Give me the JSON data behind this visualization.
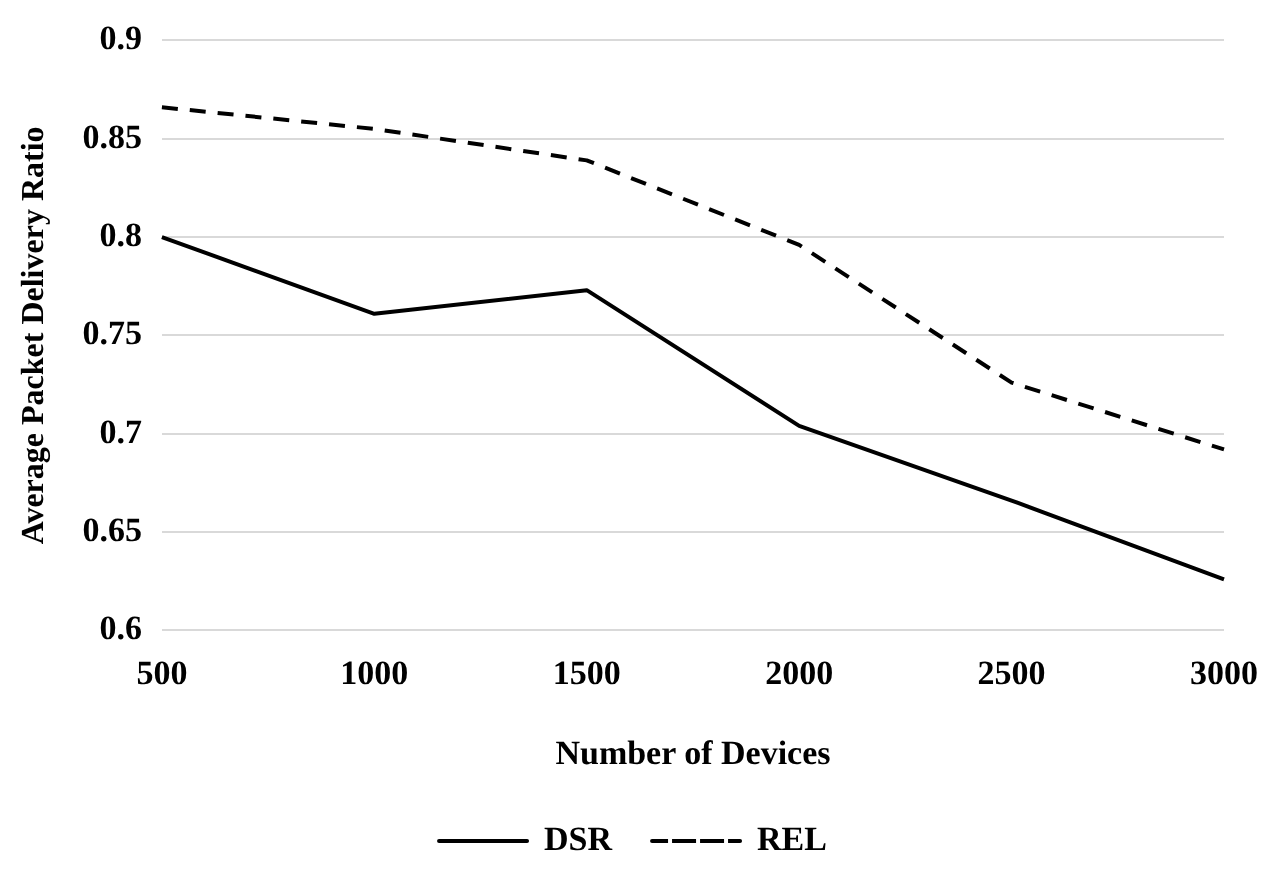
{
  "chart_data": {
    "type": "line",
    "xlabel": "Number of Devices",
    "ylabel": "Average Packet Delivery Ratio",
    "categories": [
      "500",
      "1000",
      "1500",
      "2000",
      "2500",
      "3000"
    ],
    "series": [
      {
        "name": "DSR",
        "color": "#000000",
        "line_style": "solid",
        "values": [
          0.8,
          0.761,
          0.773,
          0.704,
          0.666,
          0.626
        ]
      },
      {
        "name": "REL",
        "color": "#000000",
        "line_style": "dashed",
        "values": [
          0.866,
          0.855,
          0.839,
          0.796,
          0.726,
          0.692
        ]
      }
    ],
    "ylim": [
      0.6,
      0.9
    ],
    "yticks": [
      0.6,
      0.65,
      0.7,
      0.75,
      0.8,
      0.85,
      0.9
    ],
    "grid": "y",
    "legend": "bottom",
    "marker": "none"
  }
}
